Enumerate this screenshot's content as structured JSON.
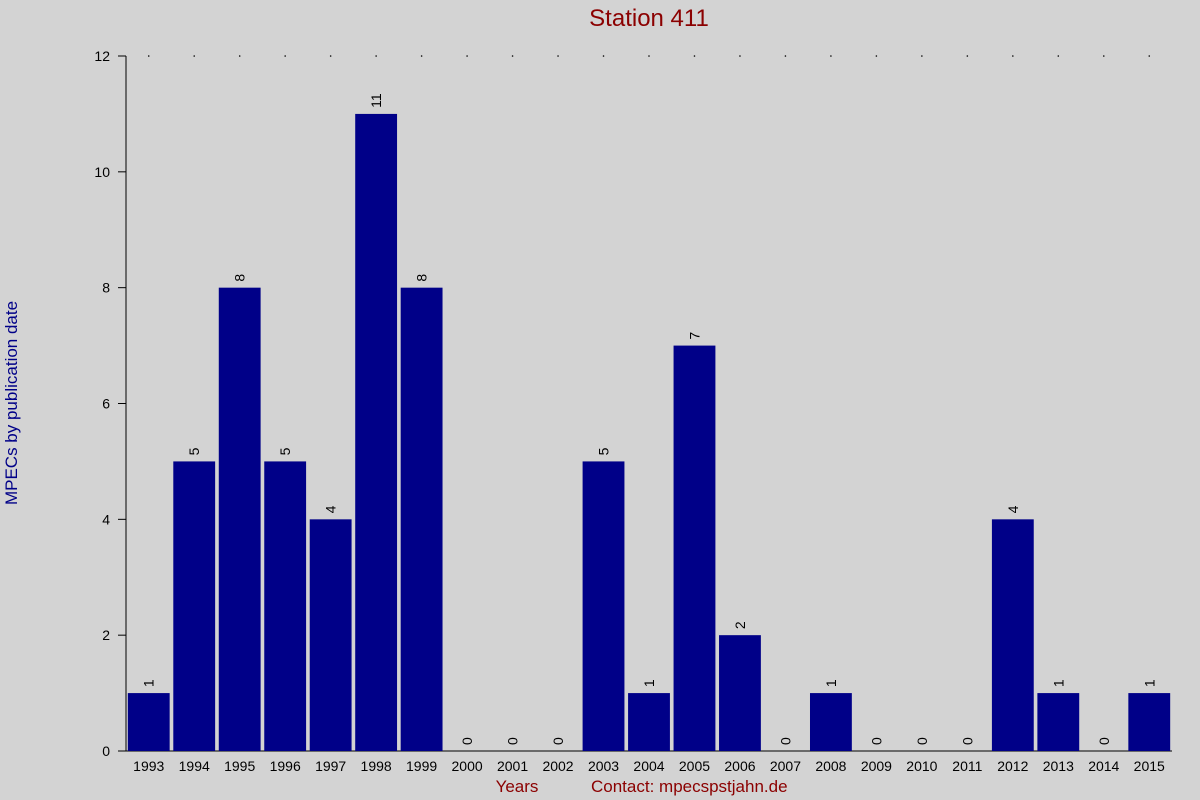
{
  "chart_data": {
    "type": "bar",
    "title": "Station 411",
    "y_label": "MPECs by publication date",
    "x_label": "Years",
    "annotation": "Contact: mpecspstjahn.de",
    "categories": [
      "1993",
      "1994",
      "1995",
      "1996",
      "1997",
      "1998",
      "1999",
      "2000",
      "2001",
      "2002",
      "2003",
      "2004",
      "2005",
      "2006",
      "2007",
      "2008",
      "2009",
      "2010",
      "2011",
      "2012",
      "2013",
      "2014",
      "2015"
    ],
    "values": [
      1,
      5,
      8,
      5,
      4,
      11,
      8,
      0,
      0,
      0,
      5,
      1,
      7,
      2,
      0,
      1,
      0,
      0,
      0,
      4,
      1,
      0,
      1
    ],
    "color": "#000088",
    "ylim": [
      0,
      12
    ],
    "yticks": [
      0,
      2,
      4,
      6,
      8,
      10,
      12
    ]
  }
}
